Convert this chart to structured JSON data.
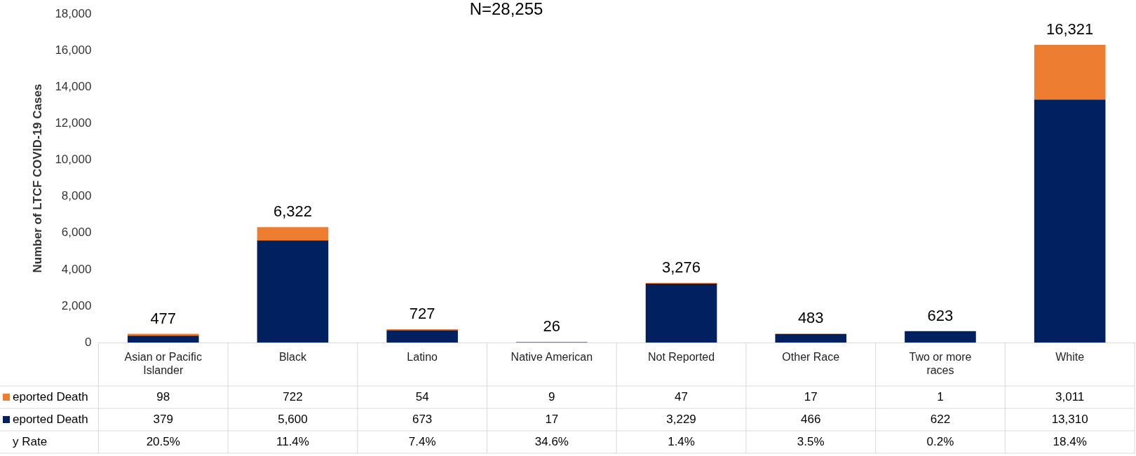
{
  "chart_data": {
    "type": "bar",
    "title": "N=28,255",
    "ylabel": "Number of LTCF COVID-19 Cases",
    "categories": [
      "Asian or Pacific Islander",
      "Black",
      "Latino",
      "Native American",
      "Not Reported",
      "Other Race",
      "Two or more races",
      "White"
    ],
    "stacked": true,
    "ylim": [
      0,
      18000
    ],
    "yticks": [
      0,
      {
        "value": 2000,
        "label": "2,000"
      },
      {
        "value": 4000,
        "label": "4,000"
      },
      {
        "value": 6000,
        "label": "6,000"
      },
      {
        "value": 8000,
        "label": "8,000"
      },
      {
        "value": 10000,
        "label": "10,000"
      },
      {
        "value": 12000,
        "label": "12,000"
      },
      {
        "value": 14000,
        "label": "14,000"
      },
      {
        "value": 16000,
        "label": "16,000"
      },
      {
        "value": 18000,
        "label": "18,000"
      }
    ],
    "grid": false,
    "legend": "bottom left",
    "series": [
      {
        "name": "eported Death",
        "color": "#002060",
        "values": [
          379,
          5600,
          673,
          17,
          3229,
          466,
          622,
          13310
        ],
        "value_labels": [
          "379",
          "5,600",
          "673",
          "17",
          "3,229",
          "466",
          "622",
          "13,310"
        ]
      },
      {
        "name": "eported Death",
        "color": "#ed7d31",
        "values": [
          98,
          722,
          54,
          9,
          47,
          17,
          1,
          3011
        ],
        "value_labels": [
          "98",
          "722",
          "54",
          "9",
          "47",
          "17",
          "1",
          "3,011"
        ]
      }
    ],
    "totals": [
      "477",
      "6,322",
      "727",
      "26",
      "3,276",
      "483",
      "623",
      "16,321"
    ],
    "annotations": [
      "y Rate",
      "20.5%",
      "11.4%",
      "7.4%",
      "34.6%",
      "1.4%",
      "3.5%",
      "0.2%",
      "18.4%"
    ]
  }
}
